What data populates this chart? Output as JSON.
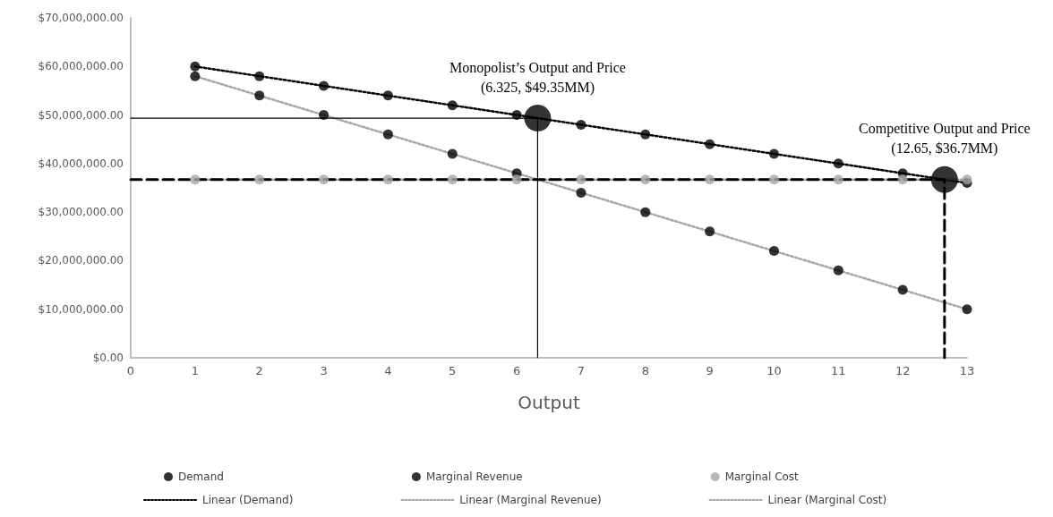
{
  "chart_data": {
    "type": "scatter",
    "xlabel": "Output",
    "xlim": [
      0,
      13
    ],
    "xticks": [
      0,
      1,
      2,
      3,
      4,
      5,
      6,
      7,
      8,
      9,
      10,
      11,
      12,
      13
    ],
    "ylim": [
      0,
      70000000
    ],
    "yticks": [
      {
        "value": 0,
        "label": "$0.00"
      },
      {
        "value": 10000000,
        "label": "$10,000,000.00"
      },
      {
        "value": 20000000,
        "label": "$20,000,000.00"
      },
      {
        "value": 30000000,
        "label": "$30,000,000.00"
      },
      {
        "value": 40000000,
        "label": "$40,000,000.00"
      },
      {
        "value": 50000000,
        "label": "$50,000,000.00"
      },
      {
        "value": 60000000,
        "label": "$60,000,000.00"
      },
      {
        "value": 70000000,
        "label": "$70,000,000.00"
      }
    ],
    "grid": false,
    "legend": "bottom",
    "marker": "circle",
    "series": [
      {
        "name": "Demand",
        "color": "#000000",
        "x": [
          1,
          2,
          3,
          4,
          5,
          6,
          7,
          8,
          9,
          10,
          11,
          12,
          13
        ],
        "values": [
          60000000,
          58000000,
          56000000,
          54000000,
          52000000,
          50000000,
          48000000,
          46000000,
          44000000,
          42000000,
          40000000,
          38000000,
          36000000
        ]
      },
      {
        "name": "Marginal Revenue",
        "color": "#000000",
        "x": [
          1,
          2,
          3,
          4,
          5,
          6,
          7,
          8,
          9,
          10,
          11,
          12,
          13
        ],
        "values": [
          58000000,
          54000000,
          50000000,
          46000000,
          42000000,
          38000000,
          34000000,
          30000000,
          26000000,
          22000000,
          18000000,
          14000000,
          10000000
        ]
      },
      {
        "name": "Marginal Cost",
        "color": "#a6a6a6",
        "x": [
          1,
          2,
          3,
          4,
          5,
          6,
          7,
          8,
          9,
          10,
          11,
          12,
          13
        ],
        "values": [
          36700000,
          36700000,
          36700000,
          36700000,
          36700000,
          36700000,
          36700000,
          36700000,
          36700000,
          36700000,
          36700000,
          36700000,
          36700000
        ]
      },
      {
        "name": "Linear (Demand)",
        "type": "line",
        "color": "#000000",
        "line_style": "dotted",
        "marker": "none",
        "x": [
          1,
          13
        ],
        "values": [
          60000000,
          36000000
        ]
      },
      {
        "name": "Linear (Marginal Revenue)",
        "type": "line",
        "color": "#a6a6a6",
        "line_style": "dotted",
        "marker": "none",
        "x": [
          1,
          13
        ],
        "values": [
          58000000,
          10000000
        ]
      },
      {
        "name": "Linear (Marginal Cost)",
        "type": "line",
        "color": "#a6a6a6",
        "line_style": "dotted",
        "marker": "none",
        "x": [
          1,
          13
        ],
        "values": [
          36700000,
          36700000
        ]
      },
      {
        "type": "line",
        "color": "#000000",
        "line_style": "solid",
        "marker": "none",
        "x": [
          0,
          6.325,
          6.325
        ],
        "values": [
          49350000,
          49350000,
          0
        ]
      },
      {
        "type": "line",
        "color": "#000000",
        "line_style": "dashed",
        "marker": "none",
        "x": [
          0,
          12.65,
          12.65
        ],
        "values": [
          36700000,
          36700000,
          0
        ]
      },
      {
        "type": "scatter",
        "color": "#000000",
        "x": [
          6.325,
          12.65
        ],
        "values": [
          49350000,
          36700000
        ]
      }
    ],
    "annotations": [
      {
        "text": "Monopolist’s Output and Price\n(6.325, $49.35MM)",
        "x": 6.325,
        "y": 49350000
      },
      {
        "text": "Competitive Output and Price\n(12.65, $36.7MM)",
        "x": 12.65,
        "y": 36700000
      }
    ]
  }
}
